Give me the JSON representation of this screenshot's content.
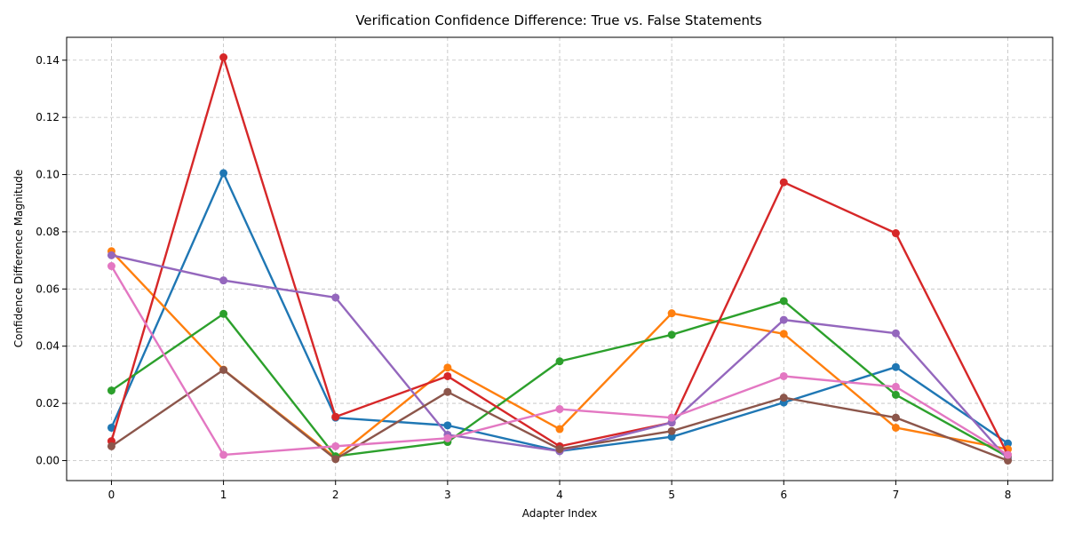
{
  "chart_data": {
    "type": "line",
    "title": "Verification Confidence Difference: True vs. False Statements",
    "xlabel": "Adapter Index",
    "ylabel": "Confidence Difference Magnitude",
    "x": [
      0,
      1,
      2,
      3,
      4,
      5,
      6,
      7,
      8
    ],
    "xlim": [
      -0.4,
      8.4
    ],
    "ylim": [
      -0.007,
      0.148
    ],
    "xticks": [
      "0",
      "1",
      "2",
      "3",
      "4",
      "5",
      "6",
      "7",
      "8"
    ],
    "yticks": [
      "0.00",
      "0.02",
      "0.04",
      "0.06",
      "0.08",
      "0.10",
      "0.12",
      "0.14"
    ],
    "ytick_values": [
      0,
      0.02,
      0.04,
      0.06,
      0.08,
      0.1,
      0.12,
      0.14
    ],
    "grid": true,
    "series": [
      {
        "color": "#1f77b4",
        "values": [
          0.0115,
          0.1005,
          0.015,
          0.0123,
          0.0033,
          0.0083,
          0.0203,
          0.0327,
          0.006
        ]
      },
      {
        "color": "#ff7f0e",
        "values": [
          0.0732,
          0.0318,
          0.001,
          0.0325,
          0.011,
          0.0515,
          0.0443,
          0.0115,
          0.004
        ]
      },
      {
        "color": "#2ca02c",
        "values": [
          0.0245,
          0.0513,
          0.0015,
          0.0065,
          0.0347,
          0.044,
          0.0558,
          0.023,
          0.0013
        ]
      },
      {
        "color": "#d62728",
        "values": [
          0.0068,
          0.141,
          0.0153,
          0.0295,
          0.005,
          0.0133,
          0.0973,
          0.0795,
          0.002
        ]
      },
      {
        "color": "#9467bd",
        "values": [
          0.0718,
          0.063,
          0.057,
          0.009,
          0.0033,
          0.0133,
          0.0492,
          0.0445,
          0.0005
        ]
      },
      {
        "color": "#8c564b",
        "values": [
          0.005,
          0.0317,
          0.0005,
          0.024,
          0.004,
          0.0103,
          0.022,
          0.015,
          0.0
        ]
      },
      {
        "color": "#e377c2",
        "values": [
          0.068,
          0.002,
          0.005,
          0.0078,
          0.018,
          0.015,
          0.0295,
          0.0258,
          0.002
        ]
      }
    ]
  }
}
